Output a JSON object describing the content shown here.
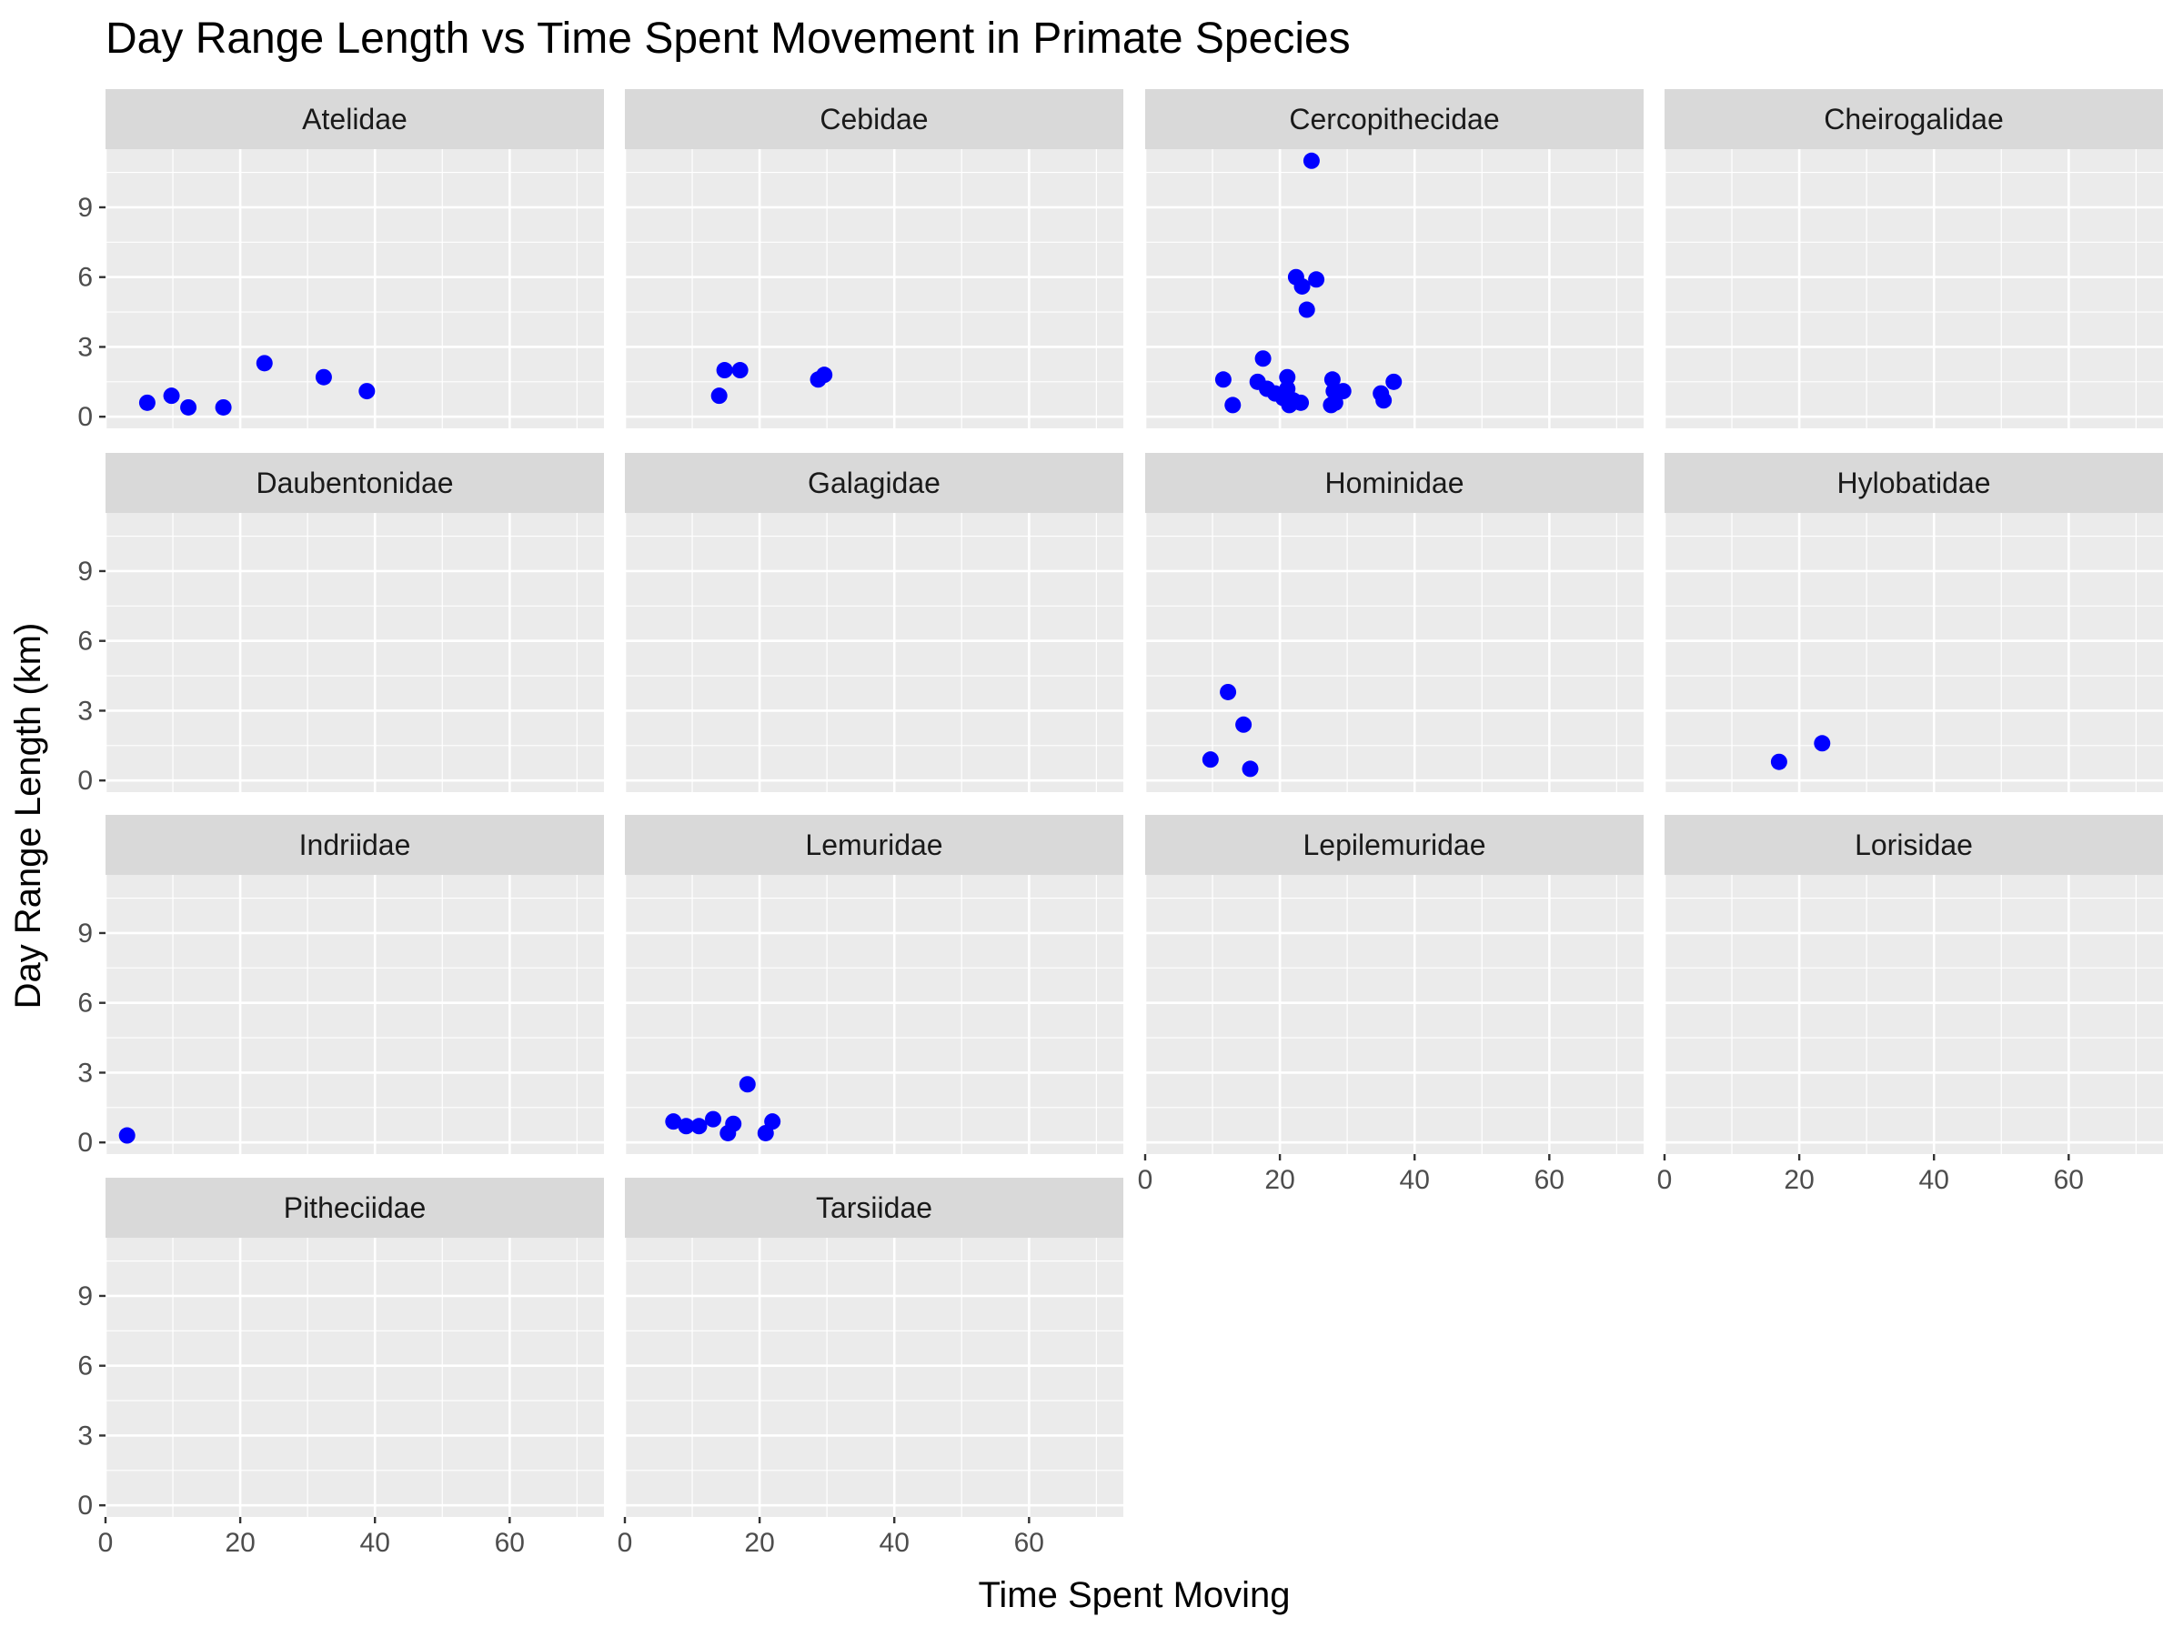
{
  "chart_data": {
    "type": "scatter",
    "title": "Day Range Length vs Time Spent Movement in Primate Species",
    "xlabel": "Time Spent Moving",
    "ylabel": "Day Range Length (km)",
    "xlim": [
      0,
      74
    ],
    "ylim": [
      -0.5,
      11.5
    ],
    "x_ticks": [
      0,
      20,
      40,
      60
    ],
    "y_ticks": [
      0,
      3,
      6,
      9
    ],
    "grid": true,
    "facet_layout": "4 columns, facets wrapped by family",
    "point_color": "#0000FF",
    "panel_background": "#EBEBEB",
    "strip_background": "#D9D9D9",
    "facets": [
      {
        "name": "Atelidae",
        "points": [
          [
            6.2,
            0.6
          ],
          [
            9.8,
            0.9
          ],
          [
            12.3,
            0.4
          ],
          [
            17.5,
            0.4
          ],
          [
            23.6,
            2.3
          ],
          [
            32.4,
            1.7
          ],
          [
            38.8,
            1.1
          ]
        ]
      },
      {
        "name": "Cebidae",
        "points": [
          [
            14.0,
            0.9
          ],
          [
            14.8,
            2.0
          ],
          [
            17.1,
            2.0
          ],
          [
            28.7,
            1.6
          ],
          [
            29.6,
            1.8
          ]
        ]
      },
      {
        "name": "Cercopithecidae",
        "points": [
          [
            11.6,
            1.6
          ],
          [
            13.0,
            0.5
          ],
          [
            16.7,
            1.5
          ],
          [
            17.5,
            2.5
          ],
          [
            18.1,
            1.2
          ],
          [
            19.3,
            1.0
          ],
          [
            20.5,
            0.8
          ],
          [
            21.1,
            1.7
          ],
          [
            21.1,
            1.2
          ],
          [
            21.4,
            0.5
          ],
          [
            22.0,
            0.7
          ],
          [
            22.4,
            6.0
          ],
          [
            23.1,
            0.6
          ],
          [
            23.3,
            5.6
          ],
          [
            24.0,
            4.6
          ],
          [
            24.7,
            11.0
          ],
          [
            25.4,
            5.9
          ],
          [
            27.6,
            0.5
          ],
          [
            27.8,
            1.6
          ],
          [
            28.0,
            1.1
          ],
          [
            28.2,
            0.6
          ],
          [
            29.4,
            1.1
          ],
          [
            35.0,
            1.0
          ],
          [
            35.4,
            0.7
          ],
          [
            36.9,
            1.5
          ]
        ]
      },
      {
        "name": "Cheirogalidae",
        "points": []
      },
      {
        "name": "Daubentonidae",
        "points": []
      },
      {
        "name": "Galagidae",
        "points": []
      },
      {
        "name": "Hominidae",
        "points": [
          [
            9.7,
            0.9
          ],
          [
            12.3,
            3.8
          ],
          [
            14.6,
            2.4
          ],
          [
            15.6,
            0.5
          ]
        ]
      },
      {
        "name": "Hylobatidae",
        "points": [
          [
            17.0,
            0.8
          ],
          [
            23.4,
            1.6
          ]
        ]
      },
      {
        "name": "Indriidae",
        "points": [
          [
            3.2,
            0.3
          ]
        ]
      },
      {
        "name": "Lemuridae",
        "points": [
          [
            7.2,
            0.9
          ],
          [
            9.1,
            0.7
          ],
          [
            11.0,
            0.7
          ],
          [
            13.1,
            1.0
          ],
          [
            15.3,
            0.4
          ],
          [
            16.1,
            0.8
          ],
          [
            18.2,
            2.5
          ],
          [
            20.9,
            0.4
          ],
          [
            21.9,
            0.9
          ]
        ]
      },
      {
        "name": "Lepilemuridae",
        "points": []
      },
      {
        "name": "Lorisidae",
        "points": []
      },
      {
        "name": "Pitheciidae",
        "points": []
      },
      {
        "name": "Tarsiidae",
        "points": []
      }
    ]
  }
}
